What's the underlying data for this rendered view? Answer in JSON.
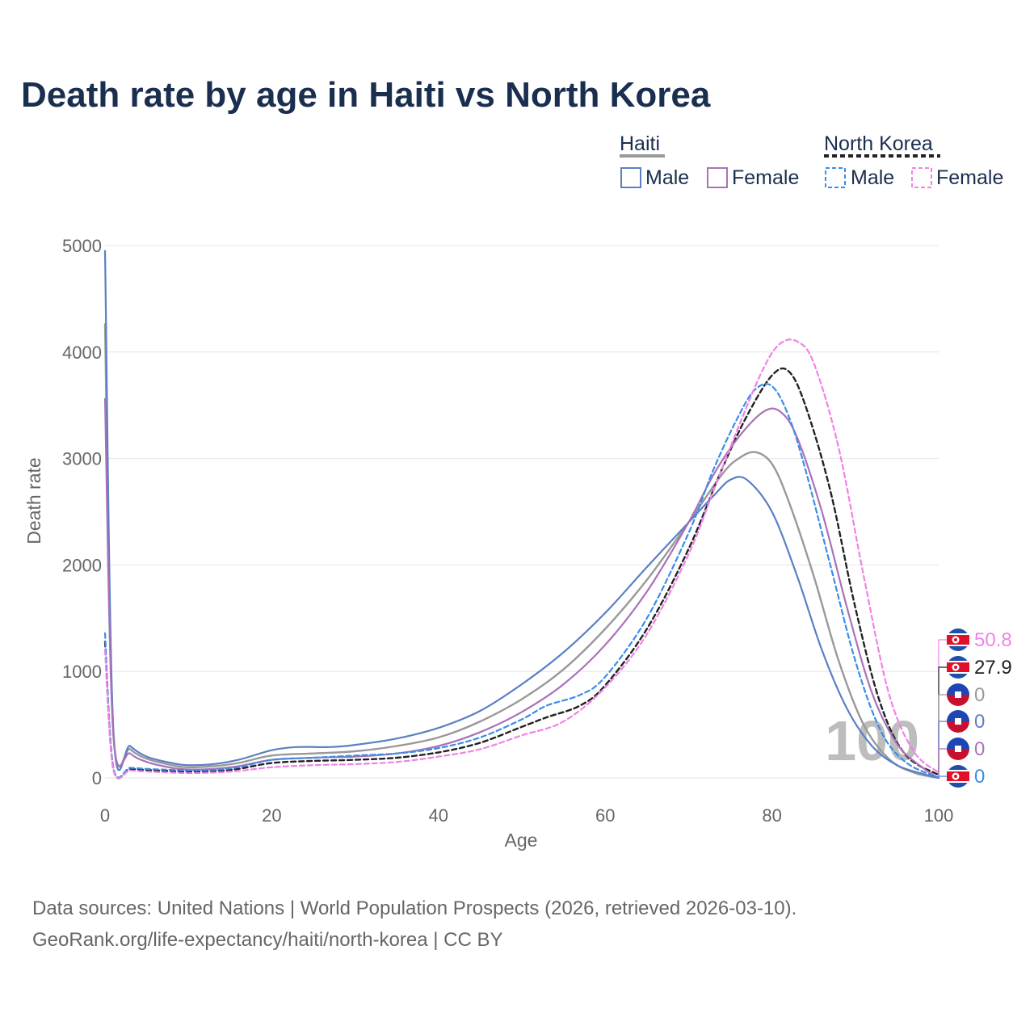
{
  "chart_data": {
    "type": "line",
    "title": "Death rate by age in Haiti vs North Korea",
    "xlabel": "Age",
    "ylabel": "Death rate",
    "xlim": [
      0,
      100
    ],
    "ylim": [
      0,
      5000
    ],
    "x_ticks": [
      0,
      20,
      40,
      60,
      80,
      100
    ],
    "y_ticks": [
      0,
      1000,
      2000,
      3000,
      4000,
      5000
    ],
    "grid": true,
    "legend": {
      "position": "top-right",
      "groups": [
        {
          "country": "Haiti",
          "items": [
            "Male",
            "Female"
          ]
        },
        {
          "country": "North Korea",
          "items": [
            "Male",
            "Female"
          ]
        }
      ]
    },
    "annotation_year": "100",
    "series": [
      {
        "name": "Haiti Male",
        "country": "Haiti",
        "sex": "Male",
        "color": "#5b7fc4",
        "dash": "solid",
        "end_label": "0",
        "x": [
          0,
          1,
          3,
          5,
          8,
          10,
          13,
          16,
          20,
          23,
          27,
          30,
          35,
          40,
          45,
          50,
          55,
          60,
          65,
          70,
          73,
          75,
          77,
          80,
          83,
          86,
          89,
          92,
          95,
          98,
          100
        ],
        "values": [
          4950,
          450,
          300,
          200,
          140,
          120,
          130,
          170,
          260,
          290,
          290,
          310,
          370,
          470,
          630,
          880,
          1180,
          1550,
          1980,
          2400,
          2650,
          2800,
          2800,
          2500,
          1900,
          1200,
          650,
          300,
          120,
          40,
          0
        ]
      },
      {
        "name": "Haiti Female",
        "country": "Haiti",
        "sex": "Female",
        "color": "#a972b8",
        "dash": "solid",
        "end_label": "0",
        "x": [
          0,
          1,
          3,
          5,
          8,
          10,
          13,
          16,
          20,
          25,
          30,
          35,
          40,
          45,
          50,
          55,
          60,
          65,
          70,
          73,
          76,
          79,
          81,
          83,
          86,
          89,
          92,
          95,
          98,
          100
        ],
        "values": [
          3560,
          400,
          230,
          150,
          95,
          80,
          85,
          110,
          170,
          190,
          200,
          230,
          300,
          430,
          620,
          880,
          1250,
          1750,
          2400,
          2850,
          3200,
          3440,
          3440,
          3200,
          2500,
          1600,
          800,
          320,
          100,
          0
        ]
      },
      {
        "name": "North Korea Male",
        "country": "North Korea",
        "sex": "Male",
        "color": "#3a8ee6",
        "dash": "dashed",
        "end_label": "0",
        "x": [
          0,
          1,
          3,
          5,
          8,
          10,
          13,
          16,
          20,
          25,
          30,
          35,
          40,
          45,
          50,
          53,
          57,
          60,
          65,
          70,
          73,
          76,
          78,
          80,
          82,
          84,
          87,
          90,
          93,
          96,
          100
        ],
        "values": [
          1360,
          95,
          95,
          85,
          75,
          70,
          75,
          100,
          170,
          190,
          210,
          230,
          280,
          380,
          550,
          680,
          780,
          950,
          1500,
          2300,
          2900,
          3400,
          3650,
          3680,
          3400,
          2900,
          2000,
          1100,
          450,
          150,
          0
        ]
      },
      {
        "name": "North Korea Female",
        "country": "North Korea",
        "sex": "Female",
        "color": "#f082e6",
        "dash": "dashed",
        "end_label": "50.8",
        "x": [
          0,
          1,
          3,
          5,
          8,
          10,
          13,
          16,
          20,
          25,
          30,
          35,
          40,
          45,
          50,
          55,
          60,
          65,
          70,
          73,
          76,
          79,
          81,
          83,
          85,
          88,
          91,
          94,
          97,
          100
        ],
        "values": [
          1200,
          80,
          70,
          60,
          50,
          45,
          50,
          65,
          100,
          120,
          130,
          150,
          200,
          270,
          400,
          530,
          850,
          1350,
          2100,
          2700,
          3300,
          3850,
          4080,
          4100,
          3900,
          3100,
          1900,
          800,
          250,
          50.8
        ]
      },
      {
        "name": "Haiti Average",
        "country": "Haiti",
        "sex": "All",
        "color": "#999999",
        "dash": "solid",
        "end_label": "0",
        "x": [
          0,
          1,
          3,
          5,
          8,
          10,
          13,
          16,
          20,
          25,
          30,
          35,
          40,
          45,
          50,
          55,
          60,
          65,
          70,
          74,
          76,
          78,
          80,
          82,
          85,
          88,
          91,
          94,
          97,
          100
        ],
        "values": [
          4260,
          440,
          270,
          180,
          120,
          100,
          110,
          140,
          210,
          230,
          250,
          300,
          380,
          530,
          740,
          1020,
          1400,
          1860,
          2400,
          2850,
          3000,
          3060,
          2950,
          2600,
          1900,
          1100,
          500,
          180,
          50,
          0
        ]
      },
      {
        "name": "North Korea Average",
        "country": "North Korea",
        "sex": "All",
        "color": "#222222",
        "dash": "dashed",
        "end_label": "27.9",
        "x": [
          0,
          1,
          3,
          5,
          8,
          10,
          13,
          16,
          20,
          25,
          30,
          35,
          40,
          45,
          50,
          53,
          57,
          60,
          65,
          70,
          74,
          77,
          80,
          82,
          84,
          87,
          90,
          93,
          96,
          100
        ],
        "values": [
          1280,
          90,
          85,
          75,
          65,
          60,
          65,
          85,
          140,
          160,
          170,
          190,
          240,
          330,
          480,
          570,
          680,
          870,
          1400,
          2150,
          2900,
          3400,
          3780,
          3820,
          3500,
          2700,
          1600,
          700,
          220,
          27.9
        ]
      }
    ]
  },
  "source": {
    "line1": "Data sources: United Nations | World Population Prospects (2026, retrieved 2026-03-10).",
    "line2": "GeoRank.org/life-expectancy/haiti/north-korea | CC BY"
  }
}
